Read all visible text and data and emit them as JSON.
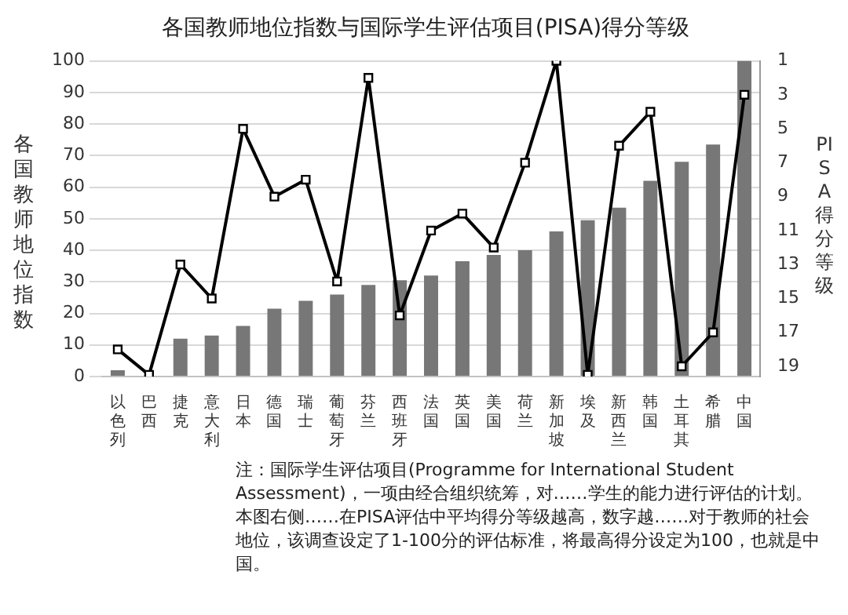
{
  "chart_data": {
    "type": "bar",
    "title": "各国教师地位指数与国际学生评估项目(PISA)得分等级",
    "ylabel": "各国教师地位指数",
    "y2label": "PISA得分等级",
    "categories": [
      "以色列",
      "巴西",
      "捷克",
      "意大利",
      "日本",
      "德国",
      "瑞士",
      "葡萄牙",
      "芬兰",
      "西班牙",
      "法国",
      "英国",
      "美国",
      "荷兰",
      "新加坡",
      "埃及",
      "新西兰",
      "韩国",
      "土耳其",
      "希腊",
      "中国"
    ],
    "series": [
      {
        "color": "#777777",
        "values": [
          2,
          null,
          12,
          13,
          16,
          21.5,
          24,
          26,
          29,
          30.5,
          32,
          36.5,
          38.5,
          40,
          46,
          49.5,
          53.5,
          62,
          68,
          73.5,
          100
        ]
      },
      {
        "type": "line",
        "axis": "y2",
        "color": "#000000",
        "marker": "square",
        "values": [
          18,
          19.5,
          13,
          15,
          5,
          9,
          8,
          14,
          2,
          16,
          11,
          10,
          12,
          7,
          1,
          19.5,
          6,
          4,
          19,
          17,
          3
        ]
      }
    ],
    "ylim": [
      0,
      100
    ],
    "yticks": [
      0,
      10,
      20,
      30,
      40,
      50,
      60,
      70,
      80,
      90,
      100
    ],
    "y2lim": [
      19.6,
      1
    ],
    "y2ticks": [
      1,
      3,
      5,
      7,
      9,
      11,
      13,
      15,
      17,
      19
    ],
    "grid": "y",
    "legend": false,
    "annotations": [
      "注：国际学生评估项目(Programme for International Student Assessment)，一项由经合组织统筹，对……学生的能力进行评估的计划。本图右侧……在PISA评估中平均得分等级越高，数字越……对于教师的社会地位，该调查设定了1-100分的评估标准，将最高得分设定为100，也就是中国。"
    ]
  }
}
